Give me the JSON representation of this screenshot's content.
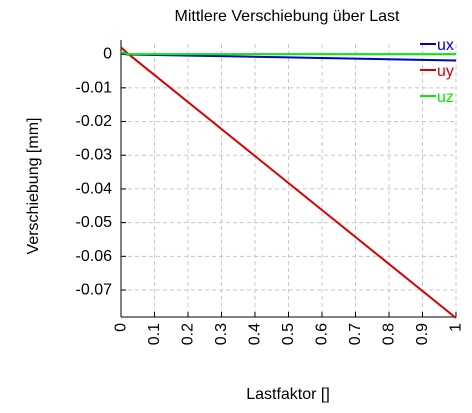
{
  "chart_data": {
    "type": "line",
    "title": "Mittlere Verschiebung über Last",
    "xlabel": "Lastfaktor []",
    "ylabel": "Verschiebung [mm]",
    "xlim": [
      0,
      1
    ],
    "ylim": [
      -0.078,
      0.003
    ],
    "xticks": [
      0,
      0.1,
      0.2,
      0.3,
      0.4,
      0.5,
      0.6,
      0.7,
      0.8,
      0.9,
      1
    ],
    "xtick_labels": [
      "0",
      "0.1",
      "0.2",
      "0.3",
      "0.4",
      "0.5",
      "0.6",
      "0.7",
      "0.8",
      "0.9",
      "1"
    ],
    "yticks": [
      0,
      -0.01,
      -0.02,
      -0.03,
      -0.04,
      -0.05,
      -0.06,
      -0.07
    ],
    "ytick_labels": [
      "0",
      "-0.01",
      "-0.02",
      "-0.03",
      "-0.04",
      "-0.05",
      "-0.06",
      "-0.07"
    ],
    "grid": true,
    "legend_position": "top-right",
    "series": [
      {
        "name": "ux",
        "color": "#0000cc",
        "x": [
          0,
          0.02,
          1
        ],
        "y": [
          0.0002,
          -0.0001,
          -0.0019
        ]
      },
      {
        "name": "uy",
        "color": "#dd0000",
        "x": [
          0,
          0.02,
          1
        ],
        "y": [
          0.002,
          0.0002,
          -0.0783
        ]
      },
      {
        "name": "uz",
        "color": "#00ee00",
        "x": [
          0,
          0.02,
          1
        ],
        "y": [
          0.0006,
          0.0,
          0.0
        ]
      }
    ]
  }
}
